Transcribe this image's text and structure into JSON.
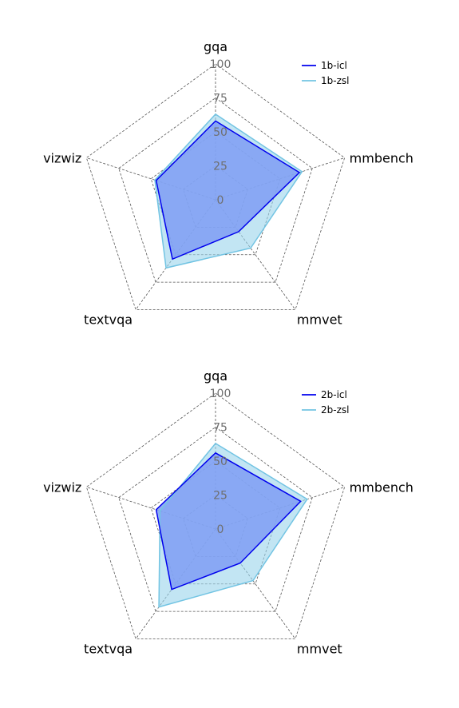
{
  "chart_data": [
    {
      "type": "radar",
      "axes": [
        "gqa",
        "mmbench",
        "mmvet",
        "textvqa",
        "vizwiz"
      ],
      "ticks": [
        0,
        25,
        50,
        75,
        100
      ],
      "rlim": [
        0,
        100
      ],
      "grid": true,
      "legend_position": "top-right",
      "series": [
        {
          "name": "1b-icl",
          "color": "#0000ee",
          "fill": "#7f9ef3",
          "fill_opacity": 0.85,
          "stroke_width": 1.5,
          "values": [
            58,
            65,
            29,
            54,
            46
          ]
        },
        {
          "name": "1b-zsl",
          "color": "#72c4e3",
          "fill": "#9ad3eb",
          "fill_opacity": 0.6,
          "stroke_width": 1.5,
          "values": [
            63,
            67,
            44,
            62,
            47
          ]
        }
      ]
    },
    {
      "type": "radar",
      "axes": [
        "gqa",
        "mmbench",
        "mmvet",
        "textvqa",
        "vizwiz"
      ],
      "ticks": [
        0,
        25,
        50,
        75,
        100
      ],
      "rlim": [
        0,
        100
      ],
      "grid": true,
      "legend_position": "top-right",
      "series": [
        {
          "name": "2b-icl",
          "color": "#0000ee",
          "fill": "#7f9ef3",
          "fill_opacity": 0.85,
          "stroke_width": 1.5,
          "values": [
            56,
            66,
            31,
            55,
            46
          ]
        },
        {
          "name": "2b-zsl",
          "color": "#72c4e3",
          "fill": "#9ad3eb",
          "fill_opacity": 0.6,
          "stroke_width": 1.5,
          "values": [
            63,
            71,
            47,
            71,
            43
          ]
        }
      ]
    }
  ]
}
